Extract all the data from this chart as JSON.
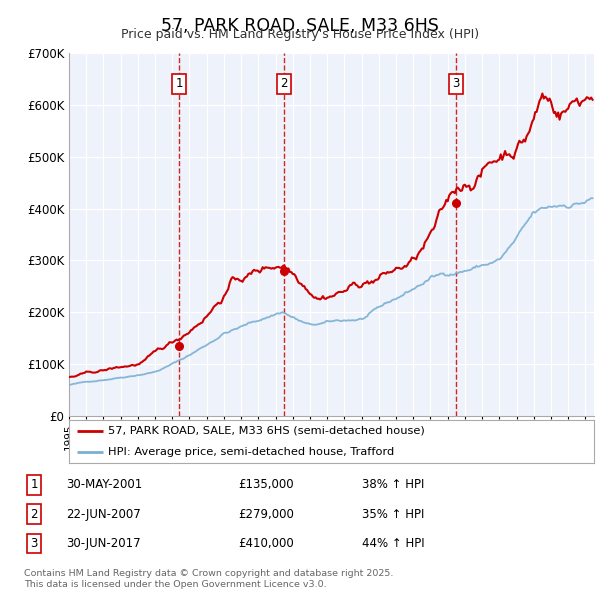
{
  "title": "57, PARK ROAD, SALE, M33 6HS",
  "subtitle": "Price paid vs. HM Land Registry's House Price Index (HPI)",
  "background_color": "#ffffff",
  "plot_background_color": "#eef2fa",
  "grid_color": "#ffffff",
  "red_line_color": "#cc0000",
  "blue_line_color": "#7aafd4",
  "sale_label": "57, PARK ROAD, SALE, M33 6HS (semi-detached house)",
  "hpi_label": "HPI: Average price, semi-detached house, Trafford",
  "purchases": [
    {
      "label": "1",
      "date": 2001.41,
      "price": 135000,
      "date_str": "30-MAY-2001",
      "price_str": "£135,000",
      "pct": "38%",
      "dir": "↑"
    },
    {
      "label": "2",
      "date": 2007.47,
      "price": 279000,
      "date_str": "22-JUN-2007",
      "price_str": "£279,000",
      "pct": "35%",
      "dir": "↑"
    },
    {
      "label": "3",
      "date": 2017.49,
      "price": 410000,
      "date_str": "30-JUN-2017",
      "price_str": "£410,000",
      "pct": "44%",
      "dir": "↑"
    }
  ],
  "footer": "Contains HM Land Registry data © Crown copyright and database right 2025.\nThis data is licensed under the Open Government Licence v3.0.",
  "ylim": [
    0,
    700000
  ],
  "xlim": [
    1995,
    2025.5
  ],
  "yticks": [
    0,
    100000,
    200000,
    300000,
    400000,
    500000,
    600000,
    700000
  ],
  "ytick_labels": [
    "£0",
    "£100K",
    "£200K",
    "£300K",
    "£400K",
    "£500K",
    "£600K",
    "£700K"
  ]
}
